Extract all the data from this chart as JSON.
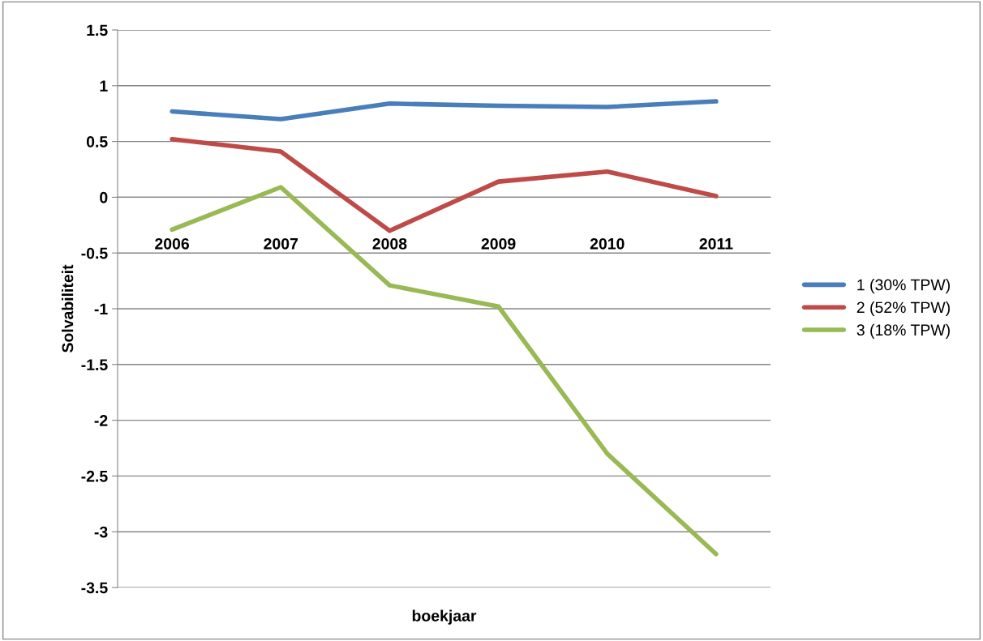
{
  "chart_data": {
    "type": "line",
    "xlabel": "boekjaar",
    "ylabel": "Solvabiliteit",
    "categories": [
      "2006",
      "2007",
      "2008",
      "2009",
      "2010",
      "2011"
    ],
    "series": [
      {
        "name": "1 (30% TPW)",
        "color": "#4a7ebb",
        "values": [
          0.77,
          0.7,
          0.84,
          0.82,
          0.81,
          0.86
        ]
      },
      {
        "name": "2 (52% TPW)",
        "color": "#be4b48",
        "values": [
          0.52,
          0.41,
          -0.3,
          0.14,
          0.23,
          0.01
        ]
      },
      {
        "name": "3 (18% TPW)",
        "color": "#98b954",
        "values": [
          -0.29,
          0.09,
          -0.79,
          -0.98,
          -2.3,
          -3.2
        ]
      }
    ],
    "ylim": [
      -3.5,
      1.5
    ],
    "yticks": [
      -3.5,
      -3,
      -2.5,
      -2,
      -1.5,
      -1,
      -0.5,
      0,
      0.5,
      1,
      1.5
    ],
    "grid": "y",
    "legend": "right",
    "marker": "none",
    "line_style": "solid"
  }
}
